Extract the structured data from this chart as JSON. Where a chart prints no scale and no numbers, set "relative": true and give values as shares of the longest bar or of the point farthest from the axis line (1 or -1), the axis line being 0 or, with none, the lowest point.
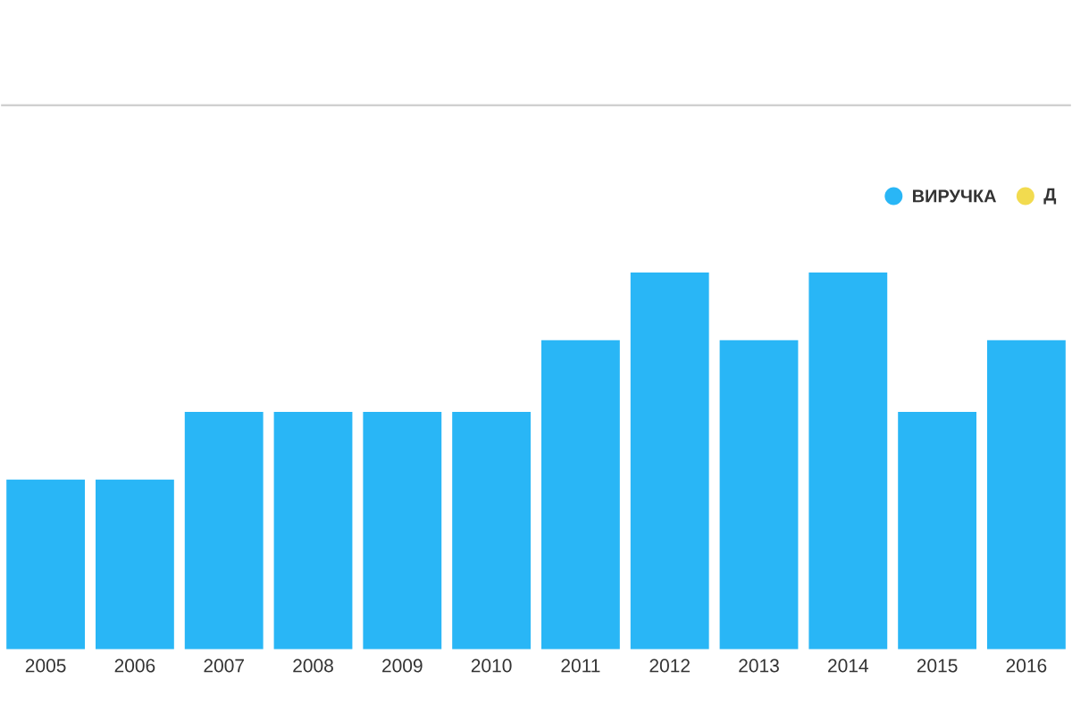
{
  "chart_data": {
    "type": "bar",
    "relative": true,
    "categories": [
      "2005",
      "2006",
      "2007",
      "2008",
      "2009",
      "2010",
      "2011",
      "2012",
      "2013",
      "2014",
      "2015",
      "2016"
    ],
    "series": [
      {
        "name": "ВИРУЧКА",
        "color": "#29b6f6",
        "values": [
          0.45,
          0.45,
          0.63,
          0.63,
          0.63,
          0.63,
          0.82,
          1,
          0.82,
          1,
          0.63,
          0.82
        ]
      },
      {
        "name": "Д",
        "color": "#f2db4f",
        "values": [
          null,
          null,
          null,
          null,
          null,
          null,
          null,
          null,
          null,
          null,
          null,
          null
        ]
      }
    ],
    "legend": "top right"
  }
}
